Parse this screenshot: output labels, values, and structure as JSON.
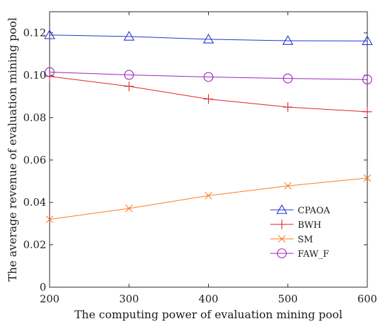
{
  "chart_data": {
    "type": "line",
    "title": "",
    "xlabel": "The computing power of evaluation mining pool",
    "ylabel": "The average revenue of evaluation mining pool",
    "x": [
      200,
      300,
      400,
      500,
      600
    ],
    "xlim": [
      200,
      600
    ],
    "ylim": [
      0,
      0.13
    ],
    "xticks": [
      "200",
      "300",
      "400",
      "500",
      "600"
    ],
    "yticks": [
      "0",
      "0.02",
      "0.04",
      "0.06",
      "0.08",
      "0.10",
      "0.12"
    ],
    "ytick_values": [
      0,
      0.02,
      0.04,
      0.06,
      0.08,
      0.1,
      0.12
    ],
    "grid": false,
    "legend_position": "lower-right",
    "series": [
      {
        "name": "CPAOA",
        "values": [
          0.119,
          0.1183,
          0.117,
          0.1163,
          0.1162
        ],
        "color": "#2233cc",
        "marker": "triangle"
      },
      {
        "name": "BWH",
        "values": [
          0.0995,
          0.0948,
          0.0888,
          0.085,
          0.0828
        ],
        "color": "#dd2222",
        "marker": "plus"
      },
      {
        "name": "SM",
        "values": [
          0.032,
          0.0372,
          0.0432,
          0.0478,
          0.0515
        ],
        "color": "#ff7722",
        "marker": "cross"
      },
      {
        "name": "FAW_F",
        "values": [
          0.1015,
          0.1002,
          0.0992,
          0.0985,
          0.098
        ],
        "color": "#9922bb",
        "marker": "circle"
      }
    ]
  }
}
